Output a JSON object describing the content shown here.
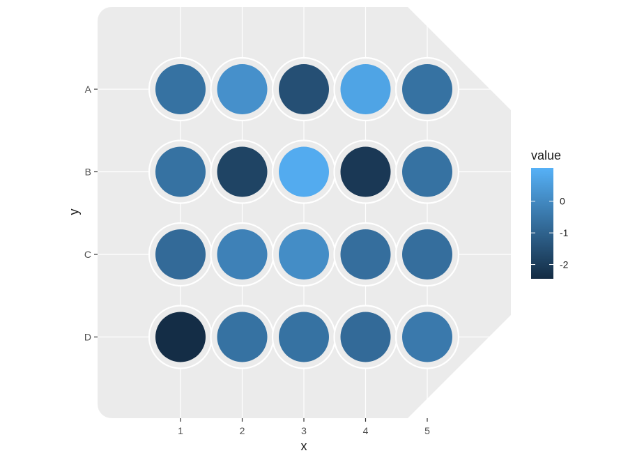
{
  "chart_data": {
    "type": "heatmap",
    "x": [
      "1",
      "2",
      "3",
      "4",
      "5"
    ],
    "y": [
      "A",
      "B",
      "C",
      "D"
    ],
    "values": [
      [
        -0.6,
        0.2,
        -1.5,
        0.7,
        -0.6
      ],
      [
        -0.6,
        -1.8,
        0.9,
        -2.1,
        -0.6
      ],
      [
        -0.8,
        -0.2,
        0.1,
        -0.7,
        -0.7
      ],
      [
        -2.4,
        -0.6,
        -0.6,
        -0.8,
        -0.4
      ]
    ],
    "xlabel": "x",
    "ylabel": "y",
    "color_scale": {
      "low": "#132b43",
      "high": "#56b1f7",
      "domain": [
        -2.45,
        1.05
      ],
      "breaks": [
        -2,
        -1,
        0
      ],
      "break_labels": [
        "-2",
        "-1",
        "0"
      ]
    },
    "legend": {
      "title": "value",
      "position": "right"
    },
    "panel": {
      "background": "#ebebeb",
      "grid": true,
      "grid_color": "#ffffff"
    }
  }
}
